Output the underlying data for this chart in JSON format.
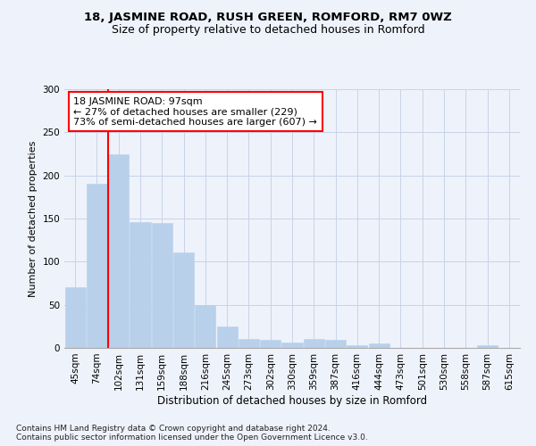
{
  "title1": "18, JASMINE ROAD, RUSH GREEN, ROMFORD, RM7 0WZ",
  "title2": "Size of property relative to detached houses in Romford",
  "xlabel": "Distribution of detached houses by size in Romford",
  "ylabel": "Number of detached properties",
  "bar_labels": [
    "45sqm",
    "74sqm",
    "102sqm",
    "131sqm",
    "159sqm",
    "188sqm",
    "216sqm",
    "245sqm",
    "273sqm",
    "302sqm",
    "330sqm",
    "359sqm",
    "387sqm",
    "416sqm",
    "444sqm",
    "473sqm",
    "501sqm",
    "530sqm",
    "558sqm",
    "587sqm",
    "615sqm"
  ],
  "bar_values": [
    70,
    190,
    225,
    146,
    145,
    111,
    50,
    25,
    10,
    9,
    6,
    10,
    9,
    3,
    5,
    0,
    0,
    0,
    0,
    3,
    0
  ],
  "bar_color": "#b8d0ea",
  "bar_edge_color": "#b8d0ea",
  "grid_color": "#c8d4e8",
  "background_color": "#eef2fb",
  "vline_x": 1.5,
  "vline_color": "red",
  "annotation_text": "18 JASMINE ROAD: 97sqm\n← 27% of detached houses are smaller (229)\n73% of semi-detached houses are larger (607) →",
  "annotation_box_facecolor": "white",
  "annotation_box_edgecolor": "red",
  "ylim": [
    0,
    300
  ],
  "yticks": [
    0,
    50,
    100,
    150,
    200,
    250,
    300
  ],
  "footnote": "Contains HM Land Registry data © Crown copyright and database right 2024.\nContains public sector information licensed under the Open Government Licence v3.0.",
  "title1_fontsize": 9.5,
  "title2_fontsize": 9,
  "xlabel_fontsize": 8.5,
  "ylabel_fontsize": 8,
  "tick_fontsize": 7.5,
  "annotation_fontsize": 8,
  "footnote_fontsize": 6.5
}
